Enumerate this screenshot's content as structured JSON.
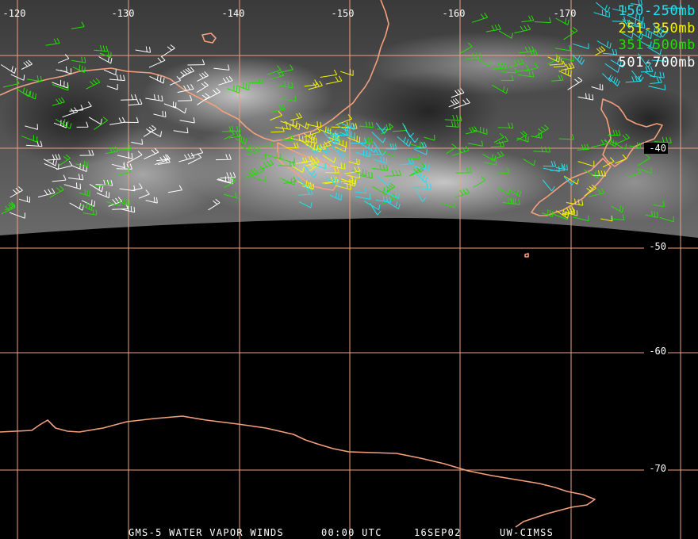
{
  "map": {
    "longitude_labels": [
      -120,
      -130,
      -140,
      -150,
      -160,
      -170
    ],
    "latitude_labels": [
      -40,
      -50,
      -60,
      -70
    ],
    "legend": [
      {
        "label": "150-250mb",
        "color": "#22e0f0"
      },
      {
        "label": "251-350mb",
        "color": "#f5f500"
      },
      {
        "label": "351-500mb",
        "color": "#22e000"
      },
      {
        "label": "501-700mb",
        "color": "#ffffff"
      }
    ],
    "footer": [
      "GMS-5 WATER VAPOR WINDS",
      "00:00 UTC",
      "16SEP02",
      "UW-CIMSS"
    ]
  }
}
